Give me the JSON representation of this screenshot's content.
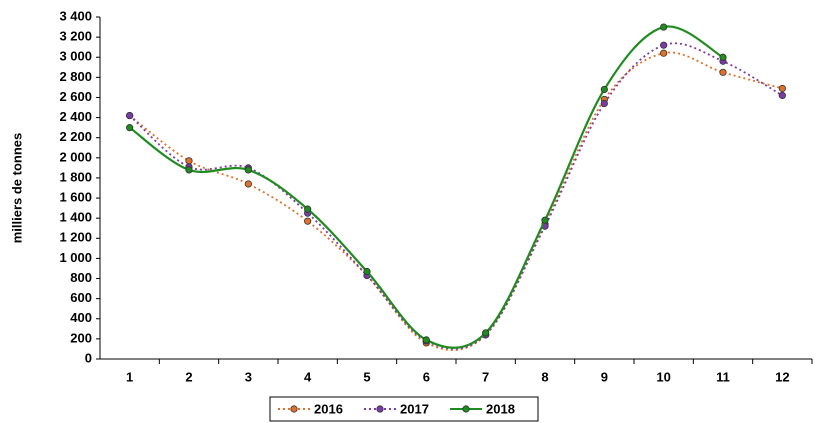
{
  "chart_data": {
    "type": "line",
    "smooth": true,
    "y_label": "milliers de tonnes",
    "categories": [
      "1",
      "2",
      "3",
      "4",
      "5",
      "6",
      "7",
      "8",
      "9",
      "10",
      "11",
      "12"
    ],
    "series": [
      {
        "name": "2016",
        "color": "#e0702a",
        "dash": "dotted",
        "values": [
          2420,
          1970,
          1740,
          1370,
          830,
          160,
          240,
          1340,
          2580,
          3040,
          2850,
          2690
        ]
      },
      {
        "name": "2017",
        "color": "#7a3aa8",
        "dash": "dotted",
        "values": [
          2420,
          1910,
          1900,
          1450,
          830,
          180,
          240,
          1320,
          2540,
          3120,
          2960,
          2620
        ]
      },
      {
        "name": "2018",
        "color": "#1e8c1e",
        "dash": "solid",
        "values": [
          2300,
          1880,
          1880,
          1490,
          870,
          190,
          260,
          1380,
          2680,
          3300,
          3000,
          null
        ]
      }
    ],
    "ylim": [
      0,
      3400
    ],
    "yticks": [
      0,
      200,
      400,
      600,
      800,
      {
        "value": 1000,
        "label": "1 000"
      },
      {
        "value": 1200,
        "label": "1 200"
      },
      {
        "value": 1400,
        "label": "1 400"
      },
      {
        "value": 1600,
        "label": "1 600"
      },
      {
        "value": 1800,
        "label": "1 800"
      },
      {
        "value": 2000,
        "label": "2 000"
      },
      {
        "value": 2200,
        "label": "2 200"
      },
      {
        "value": 2400,
        "label": "2 400"
      },
      {
        "value": 2600,
        "label": "2 600"
      },
      {
        "value": 2800,
        "label": "2 800"
      },
      {
        "value": 3000,
        "label": "3 000"
      },
      {
        "value": 3200,
        "label": "3 200"
      },
      {
        "value": 3400,
        "label": "3 400"
      }
    ],
    "grid": false,
    "legend": "bottom"
  }
}
